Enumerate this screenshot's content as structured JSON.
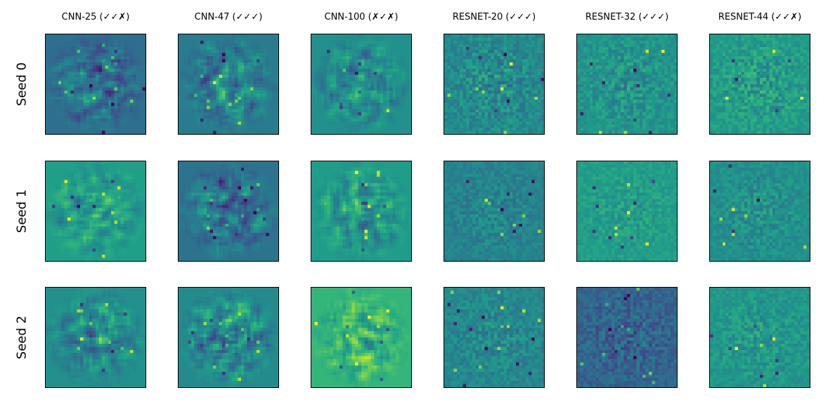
{
  "chart_data": {
    "type": "heatmap",
    "layout": "grid of 18 image panels (3 rows x 6 columns), no axes, ticks hidden",
    "colormap": "viridis",
    "columns": [
      {
        "label": "CNN-25 (✓✓✗)"
      },
      {
        "label": "CNN-47 (✓✓✓)"
      },
      {
        "label": "CNN-100 (✗✓✗)"
      },
      {
        "label": "RESNET-20 (✓✓✓)"
      },
      {
        "label": "RESNET-32 (✓✓✓)"
      },
      {
        "label": "RESNET-44 (✓✓✗)"
      }
    ],
    "rows": [
      {
        "label": "Seed 0"
      },
      {
        "label": "Seed 1"
      },
      {
        "label": "Seed 2"
      }
    ],
    "panel_resolution": [
      32,
      32
    ],
    "panels": [
      {
        "row": 0,
        "col": 0,
        "style": "smooth",
        "seed": 101,
        "background": 0.36,
        "spread": 0.2
      },
      {
        "row": 0,
        "col": 1,
        "style": "smooth",
        "seed": 102,
        "background": 0.42,
        "spread": 0.18
      },
      {
        "row": 0,
        "col": 2,
        "style": "smooth",
        "seed": 103,
        "background": 0.5,
        "spread": 0.18
      },
      {
        "row": 0,
        "col": 3,
        "style": "noise",
        "seed": 104,
        "background": 0.48,
        "spread": 0.16
      },
      {
        "row": 0,
        "col": 4,
        "style": "noise",
        "seed": 105,
        "background": 0.52,
        "spread": 0.14
      },
      {
        "row": 0,
        "col": 5,
        "style": "noise",
        "seed": 106,
        "background": 0.55,
        "spread": 0.15
      },
      {
        "row": 1,
        "col": 0,
        "style": "smooth",
        "seed": 201,
        "background": 0.56,
        "spread": 0.17
      },
      {
        "row": 1,
        "col": 1,
        "style": "smooth",
        "seed": 202,
        "background": 0.38,
        "spread": 0.19
      },
      {
        "row": 1,
        "col": 2,
        "style": "smooth",
        "seed": 203,
        "background": 0.55,
        "spread": 0.18
      },
      {
        "row": 1,
        "col": 3,
        "style": "noise",
        "seed": 204,
        "background": 0.45,
        "spread": 0.11
      },
      {
        "row": 1,
        "col": 4,
        "style": "noise",
        "seed": 205,
        "background": 0.56,
        "spread": 0.1
      },
      {
        "row": 1,
        "col": 5,
        "style": "noise",
        "seed": 206,
        "background": 0.5,
        "spread": 0.12
      },
      {
        "row": 2,
        "col": 0,
        "style": "smooth",
        "seed": 301,
        "background": 0.5,
        "spread": 0.18
      },
      {
        "row": 2,
        "col": 1,
        "style": "smooth",
        "seed": 302,
        "background": 0.48,
        "spread": 0.22
      },
      {
        "row": 2,
        "col": 2,
        "style": "smooth",
        "seed": 303,
        "background": 0.66,
        "spread": 0.18
      },
      {
        "row": 2,
        "col": 3,
        "style": "noise",
        "seed": 304,
        "background": 0.47,
        "spread": 0.13
      },
      {
        "row": 2,
        "col": 4,
        "style": "noise",
        "seed": 305,
        "background": 0.32,
        "spread": 0.15
      },
      {
        "row": 2,
        "col": 5,
        "style": "noise",
        "seed": 306,
        "background": 0.53,
        "spread": 0.12
      }
    ]
  }
}
